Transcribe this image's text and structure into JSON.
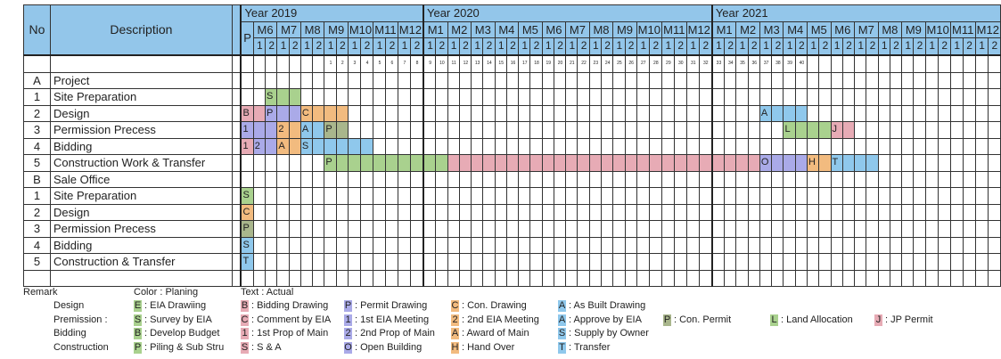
{
  "header": {
    "no": "No",
    "description": "Description",
    "years": [
      "Year 2019",
      "Year 2020",
      "Year 2021"
    ],
    "pre_label": "P"
  },
  "timeline": {
    "year_2019_months": [
      "M6",
      "M7",
      "M8",
      "M9",
      "M10",
      "M11",
      "M12"
    ],
    "year_2020_months": [
      "M1",
      "M2",
      "M3",
      "M4",
      "M5",
      "M6",
      "M7",
      "M8",
      "M9",
      "M10",
      "M11",
      "M12"
    ],
    "year_2021_months": [
      "M1",
      "M2",
      "M3",
      "M4",
      "M5",
      "M6",
      "M7",
      "M8",
      "M9",
      "M10",
      "M11",
      "M12"
    ],
    "halves": [
      "1",
      "2"
    ],
    "week_numbers_start": "2019-M9-1",
    "week_numbers_count": 40
  },
  "colors": {
    "green": "#a9d18e",
    "pink": "#e7abb5",
    "purple": "#aaaae8",
    "orange": "#f2bb7f",
    "blue": "#8fc8ec",
    "olive": "#a9b68c",
    "header": "#93c6ea"
  },
  "rows": [
    {
      "no": "A",
      "desc": "Project",
      "segments": []
    },
    {
      "no": "1",
      "desc": "Site Preparation",
      "segments": [
        {
          "label": "S",
          "color": "green",
          "start": "2019-M6-2",
          "halves": 3
        }
      ]
    },
    {
      "no": "2",
      "desc": "Design",
      "segments": [
        {
          "label": "B",
          "color": "pink",
          "start": "2019-P",
          "halves": 2
        },
        {
          "label": "P",
          "color": "purple",
          "start": "2019-M6-2",
          "halves": 3
        },
        {
          "label": "C",
          "color": "orange",
          "start": "2019-M8-1",
          "halves": 4
        },
        {
          "label": "A",
          "color": "blue",
          "start": "2021-M3-1",
          "halves": 4
        }
      ]
    },
    {
      "no": "3",
      "desc": "Permission Precess",
      "segments": [
        {
          "label": "1",
          "color": "purple",
          "start": "2019-P",
          "halves": 3
        },
        {
          "label": "2",
          "color": "orange",
          "start": "2019-M7-1",
          "halves": 2
        },
        {
          "label": "A",
          "color": "blue",
          "start": "2019-M8-1",
          "halves": 2
        },
        {
          "label": "P",
          "color": "olive",
          "start": "2019-M9-1",
          "halves": 2
        },
        {
          "label": "L",
          "color": "green",
          "start": "2021-M4-1",
          "halves": 4
        },
        {
          "label": "J",
          "color": "pink",
          "start": "2021-M6-1",
          "halves": 2
        }
      ]
    },
    {
      "no": "4",
      "desc": "Bidding",
      "segments": [
        {
          "label": "1",
          "color": "pink",
          "start": "2019-P",
          "halves": 1
        },
        {
          "label": "2",
          "color": "purple",
          "start": "2019-M6-1",
          "halves": 2
        },
        {
          "label": "A",
          "color": "orange",
          "start": "2019-M7-1",
          "halves": 2
        },
        {
          "label": "S",
          "color": "blue",
          "start": "2019-M8-1",
          "halves": 6
        }
      ]
    },
    {
      "no": "5",
      "desc": "Construction Work & Transfer",
      "segments": [
        {
          "label": "P",
          "color": "green",
          "start": "2019-M9-1",
          "halves": 10
        },
        {
          "label": "",
          "color": "pink",
          "start": "2020-M2-1",
          "halves": 26
        },
        {
          "label": "O",
          "color": "purple",
          "start": "2021-M3-1",
          "halves": 4
        },
        {
          "label": "H",
          "color": "orange",
          "start": "2021-M5-1",
          "halves": 2
        },
        {
          "label": "T",
          "color": "blue",
          "start": "2021-M6-1",
          "halves": 4
        }
      ]
    },
    {
      "no": "B",
      "desc": "Sale Office",
      "segments": []
    },
    {
      "no": "1",
      "desc": "Site Preparation",
      "segments": [
        {
          "label": "S",
          "color": "green",
          "start": "2019-P",
          "halves": 1
        }
      ]
    },
    {
      "no": "2",
      "desc": "Design",
      "segments": [
        {
          "label": "C",
          "color": "orange",
          "start": "2019-P",
          "halves": 1
        }
      ]
    },
    {
      "no": "3",
      "desc": "Permission Precess",
      "segments": [
        {
          "label": "P",
          "color": "olive",
          "start": "2019-P",
          "halves": 1
        }
      ]
    },
    {
      "no": "4",
      "desc": "Bidding",
      "segments": [
        {
          "label": "S",
          "color": "blue",
          "start": "2019-P",
          "halves": 1
        }
      ]
    },
    {
      "no": "5",
      "desc": "Construction & Transfer",
      "segments": [
        {
          "label": "T",
          "color": "blue",
          "start": "2019-P",
          "halves": 1
        }
      ]
    },
    {
      "no": "",
      "desc": "",
      "segments": []
    }
  ],
  "legend": {
    "remark": "Remark",
    "color_note": "Color : Planing",
    "text_note": "Text : Actual",
    "groups": [
      {
        "name": "Design",
        "items": [
          {
            "key": "E",
            "color": "green",
            "text": ": EIA Drawiing"
          },
          {
            "key": "B",
            "color": "pink",
            "text": ": Bidding Drawing"
          },
          {
            "key": "P",
            "color": "purple",
            "text": ": Permit Drawing"
          },
          {
            "key": "C",
            "color": "orange",
            "text": ": Con. Drawing"
          },
          {
            "key": "A",
            "color": "blue",
            "text": ": As Built Drawing"
          }
        ]
      },
      {
        "name": "Premission :",
        "items": [
          {
            "key": "S",
            "color": "green",
            "text": ": Survey by EIA"
          },
          {
            "key": "C",
            "color": "pink",
            "text": ": Comment by EIA"
          },
          {
            "key": "1",
            "color": "purple",
            "text": ": 1st EIA Meeting"
          },
          {
            "key": "2",
            "color": "orange",
            "text": ": 2nd EIA Meeting"
          },
          {
            "key": "A",
            "color": "blue",
            "text": ": Approve by EIA"
          },
          {
            "key": "P",
            "color": "olive",
            "text": ": Con. Permit"
          },
          {
            "key": "L",
            "color": "green",
            "text": ": Land Allocation"
          },
          {
            "key": "J",
            "color": "pink",
            "text": ": JP Permit"
          }
        ]
      },
      {
        "name": "Bidding",
        "items": [
          {
            "key": "B",
            "color": "green",
            "text": ": Develop Budget"
          },
          {
            "key": "1",
            "color": "pink",
            "text": ": 1st Prop of Main"
          },
          {
            "key": "2",
            "color": "purple",
            "text": ": 2nd Prop of Main"
          },
          {
            "key": "A",
            "color": "orange",
            "text": ": Award of Main"
          },
          {
            "key": "S",
            "color": "blue",
            "text": ": Supply by Owner"
          }
        ]
      },
      {
        "name": "Construction",
        "items": [
          {
            "key": "P",
            "color": "green",
            "text": ": Piling & Sub Stru"
          },
          {
            "key": "S",
            "color": "pink",
            "text": ": S & A"
          },
          {
            "key": "O",
            "color": "purple",
            "text": ": Open Building"
          },
          {
            "key": "H",
            "color": "orange",
            "text": ": Hand Over"
          },
          {
            "key": "T",
            "color": "blue",
            "text": ": Transfer"
          }
        ]
      }
    ]
  }
}
